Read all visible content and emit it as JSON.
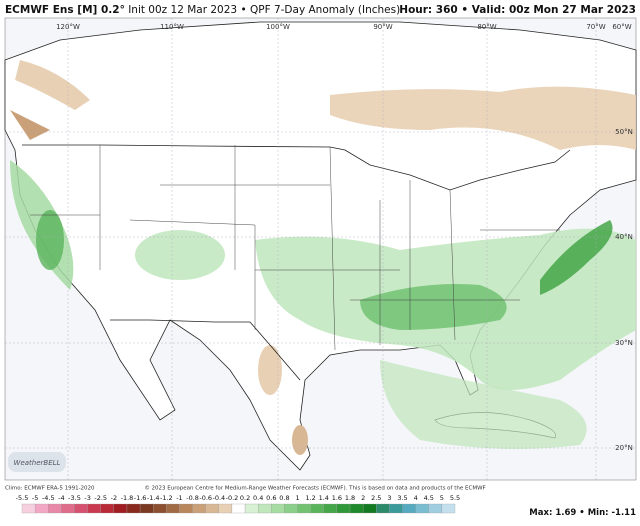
{
  "header": {
    "model": "ECMWF Ens [M] 0.2°",
    "init": "Init 00z 12 Mar 2023",
    "separator": "•",
    "product": "QPF 7-Day Anomaly (Inches)",
    "hour": "Hour: 360",
    "valid": "Valid: 00z Mon 27 Mar 2023"
  },
  "map": {
    "lon_labels": [
      "120°W",
      "110°W",
      "100°W",
      "90°W",
      "80°W",
      "70°W",
      "60°W"
    ],
    "lat_labels": [
      "50°N",
      "40°N",
      "30°N",
      "20°N"
    ],
    "logo": "WeatherBELL"
  },
  "footer": {
    "climo": "Climo: ECMWF ERA-5 1991-2020",
    "copyright": "© 2023 European Centre for Medium-Range Weather Forecasts (ECMWF). This is based on data and products of the ECMWF"
  },
  "legend": {
    "ticks": [
      -5.5,
      -5,
      -4.5,
      -4,
      -3.5,
      -3,
      -2.5,
      -2,
      -1.8,
      -1.6,
      -1.4,
      -1.2,
      -1,
      -0.8,
      -0.6,
      -0.4,
      -0.2,
      0.2,
      0.4,
      0.6,
      0.8,
      1,
      1.2,
      1.4,
      1.6,
      1.8,
      2,
      2.5,
      3,
      3.5,
      4,
      4.5,
      5,
      5.5
    ],
    "colors": [
      "#f7d0e0",
      "#f2a8c4",
      "#e987a8",
      "#e06c8c",
      "#d65070",
      "#c93a50",
      "#b82a35",
      "#a01e22",
      "#8a2a1e",
      "#7a3a22",
      "#8c5030",
      "#a06a44",
      "#b8875c",
      "#c9a078",
      "#d8b894",
      "#e8d0b4",
      "#ffffff",
      "#d8f0d4",
      "#c0e6bc",
      "#a6dba2",
      "#8ccf8a",
      "#72c272",
      "#5ab45c",
      "#44a648",
      "#2f9838",
      "#1e8a2c",
      "#137a22",
      "#2a8a6a",
      "#3a9a9a",
      "#56aabf",
      "#7abcd0",
      "#a0cde0",
      "#c4e0ee"
    ]
  },
  "stats": {
    "max_label": "Max:",
    "max": 1.69,
    "separator": "•",
    "min_label": "Min:",
    "min": -1.11
  }
}
